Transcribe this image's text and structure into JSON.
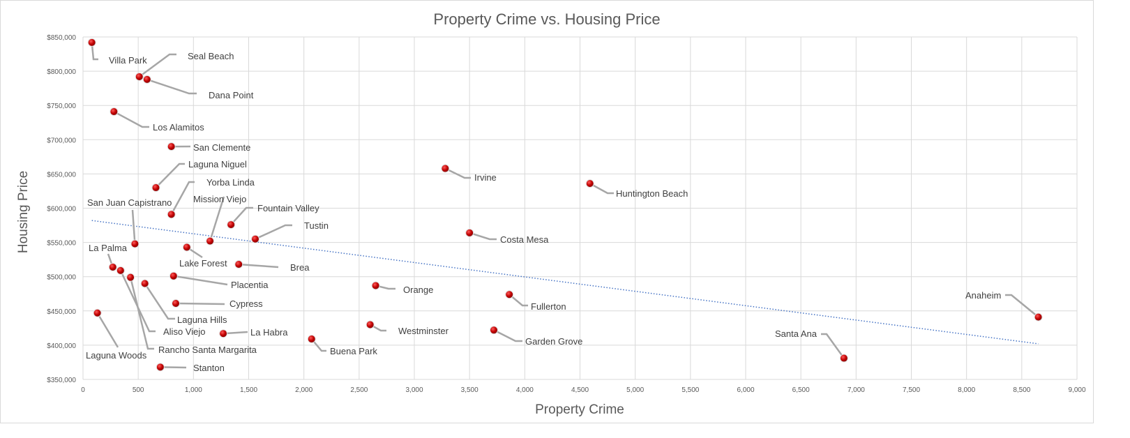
{
  "chart_data": {
    "type": "scatter",
    "title": "Property Crime vs. Housing Price",
    "xlabel": "Property Crime",
    "ylabel": "Housing Price",
    "xlim": [
      0,
      9000
    ],
    "ylim": [
      350000,
      850000
    ],
    "x_ticks": [
      "0",
      "500",
      "1,000",
      "1,500",
      "2,000",
      "2,500",
      "3,000",
      "3,500",
      "4,000",
      "4,500",
      "5,000",
      "5,500",
      "6,000",
      "6,500",
      "7,000",
      "7,500",
      "8,000",
      "8,500",
      "9,000"
    ],
    "y_ticks": [
      "$350,000",
      "$400,000",
      "$450,000",
      "$500,000",
      "$550,000",
      "$600,000",
      "$650,000",
      "$700,000",
      "$750,000",
      "$800,000",
      "$850,000"
    ],
    "grid": true,
    "marker_color": "#c00000",
    "trendline": {
      "type": "linear",
      "color": "#4472c4",
      "style": "dotted",
      "start": [
        80,
        582000
      ],
      "end": [
        8650,
        402000
      ]
    },
    "points": [
      {
        "label": "Villa Park",
        "x": 80,
        "y": 842000
      },
      {
        "label": "Seal Beach",
        "x": 510,
        "y": 792000
      },
      {
        "label": "Dana Point",
        "x": 580,
        "y": 788000
      },
      {
        "label": "Los Alamitos",
        "x": 280,
        "y": 741000
      },
      {
        "label": "San Clemente",
        "x": 800,
        "y": 690000
      },
      {
        "label": "Laguna Niguel",
        "x": 660,
        "y": 630000
      },
      {
        "label": "Yorba Linda",
        "x": 800,
        "y": 591000
      },
      {
        "label": "Mission Viejo",
        "x": 1150,
        "y": 552000
      },
      {
        "label": "Fountain Valley",
        "x": 1340,
        "y": 576000
      },
      {
        "label": "Tustin",
        "x": 1560,
        "y": 555000
      },
      {
        "label": "San Juan Capistrano",
        "x": 470,
        "y": 548000
      },
      {
        "label": "Lake Forest",
        "x": 940,
        "y": 543000
      },
      {
        "label": "La Palma",
        "x": 270,
        "y": 514000
      },
      {
        "label": "Brea",
        "x": 1410,
        "y": 518000
      },
      {
        "label": "Placentia",
        "x": 820,
        "y": 501000
      },
      {
        "label": "Cypress",
        "x": 840,
        "y": 461000
      },
      {
        "label": "Laguna Hills",
        "x": 560,
        "y": 490000
      },
      {
        "label": "Aliso Viejo",
        "x": 340,
        "y": 509000
      },
      {
        "label": "Rancho Santa Margarita",
        "x": 430,
        "y": 499000
      },
      {
        "label": "Laguna Woods",
        "x": 130,
        "y": 447000
      },
      {
        "label": "La Habra",
        "x": 1270,
        "y": 417000
      },
      {
        "label": "Stanton",
        "x": 700,
        "y": 368000
      },
      {
        "label": "Buena Park",
        "x": 2070,
        "y": 409000
      },
      {
        "label": "Orange",
        "x": 2650,
        "y": 487000
      },
      {
        "label": "Westminster",
        "x": 2600,
        "y": 430000
      },
      {
        "label": "Irvine",
        "x": 3280,
        "y": 658000
      },
      {
        "label": "Costa Mesa",
        "x": 3500,
        "y": 564000
      },
      {
        "label": "Fullerton",
        "x": 3860,
        "y": 474000
      },
      {
        "label": "Garden Grove",
        "x": 3720,
        "y": 422000
      },
      {
        "label": "Huntington Beach",
        "x": 4590,
        "y": 636000
      },
      {
        "label": "Santa Ana",
        "x": 6890,
        "y": 381000
      },
      {
        "label": "Anaheim",
        "x": 8650,
        "y": 441000
      }
    ]
  }
}
